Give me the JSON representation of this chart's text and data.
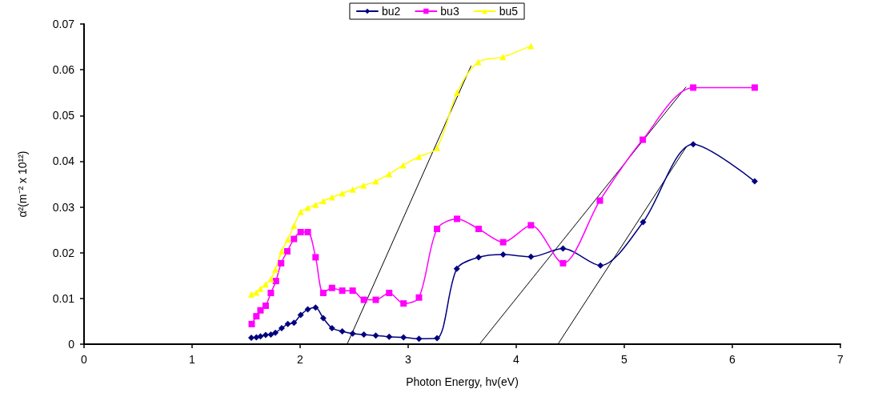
{
  "chart_data": {
    "type": "line",
    "xlabel": "Photon Energy, hν(eV)",
    "ylabel": "α²(m⁻² x 10¹²)",
    "xlim": [
      0,
      7
    ],
    "xticks": [
      0,
      1,
      2,
      3,
      4,
      5,
      6,
      7
    ],
    "ylim": [
      0,
      0.07
    ],
    "yticks": [
      0,
      0.01,
      0.02,
      0.03,
      0.04,
      0.05,
      0.06,
      0.07
    ],
    "grid": false,
    "legend": "top",
    "series": [
      {
        "name": "bu2",
        "color": "#000080",
        "marker": "diamond",
        "x": [
          1.548,
          1.595,
          1.633,
          1.681,
          1.729,
          1.771,
          1.829,
          1.886,
          1.943,
          2.005,
          2.071,
          2.143,
          2.214,
          2.295,
          2.39,
          2.486,
          2.59,
          2.7,
          2.824,
          2.957,
          3.1,
          3.267,
          3.45,
          3.652,
          3.879,
          4.136,
          4.433,
          4.779,
          5.174,
          5.638,
          6.207
        ],
        "values": [
          0.0014,
          0.0015,
          0.0017,
          0.002,
          0.0021,
          0.0025,
          0.0035,
          0.0044,
          0.0047,
          0.0064,
          0.0076,
          0.008,
          0.0057,
          0.0035,
          0.0028,
          0.0023,
          0.0021,
          0.0019,
          0.0016,
          0.0015,
          0.0012,
          0.0013,
          0.0165,
          0.019,
          0.0196,
          0.0191,
          0.0209,
          0.0172,
          0.0267,
          0.0437,
          0.0356
        ]
      },
      {
        "name": "bu3",
        "color": "#ff00ff",
        "marker": "square",
        "x": [
          1.552,
          1.595,
          1.633,
          1.681,
          1.729,
          1.776,
          1.824,
          1.881,
          1.943,
          2.005,
          2.071,
          2.143,
          2.214,
          2.295,
          2.39,
          2.486,
          2.59,
          2.7,
          2.824,
          2.957,
          3.1,
          3.267,
          3.452,
          3.652,
          3.879,
          4.136,
          4.433,
          4.774,
          5.171,
          5.638,
          6.207
        ],
        "values": [
          0.0044,
          0.0061,
          0.0074,
          0.0084,
          0.0112,
          0.0138,
          0.0177,
          0.0203,
          0.023,
          0.0245,
          0.0245,
          0.019,
          0.0112,
          0.0123,
          0.0117,
          0.0117,
          0.0097,
          0.0097,
          0.0112,
          0.0089,
          0.0102,
          0.0252,
          0.0274,
          0.0252,
          0.0223,
          0.026,
          0.0177,
          0.0314,
          0.0447,
          0.0561,
          0.0561
        ]
      },
      {
        "name": "bu5",
        "color": "#ffff00",
        "marker": "triangle",
        "x": [
          1.548,
          1.595,
          1.633,
          1.681,
          1.729,
          1.771,
          1.829,
          1.886,
          1.943,
          2.005,
          2.071,
          2.143,
          2.214,
          2.295,
          2.39,
          2.486,
          2.586,
          2.7,
          2.824,
          2.952,
          3.1,
          3.267,
          3.452,
          3.648,
          3.876,
          4.136
        ],
        "values": [
          0.0109,
          0.0113,
          0.0121,
          0.0131,
          0.0142,
          0.0163,
          0.0203,
          0.0229,
          0.0259,
          0.0289,
          0.0298,
          0.0305,
          0.0313,
          0.0321,
          0.033,
          0.0338,
          0.0347,
          0.0356,
          0.0372,
          0.0391,
          0.041,
          0.0429,
          0.055,
          0.0617,
          0.0628,
          0.0652
        ]
      },
      {
        "type": "line",
        "color": "#000000",
        "marker": "none",
        "x": [
          2.435,
          3.581
        ],
        "values": [
          0,
          0.0608
        ]
      },
      {
        "type": "line",
        "color": "#000000",
        "marker": "none",
        "x": [
          3.66,
          5.57
        ],
        "values": [
          0,
          0.0562
        ]
      },
      {
        "type": "line",
        "color": "#000000",
        "marker": "none",
        "x": [
          4.386,
          5.576
        ],
        "values": [
          0,
          0.0432
        ]
      }
    ]
  }
}
